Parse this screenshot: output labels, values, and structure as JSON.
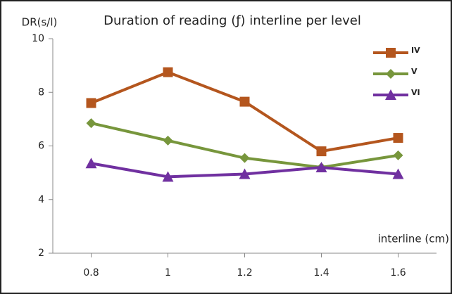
{
  "chart_data": {
    "type": "line",
    "title": "Duration of reading (ƒ) interline per level",
    "y_label": "DR(s/l)",
    "x_label": "interline (cm)",
    "x": [
      0.8,
      1,
      1.2,
      1.4,
      1.6
    ],
    "xlim": [
      0.7,
      1.7
    ],
    "xticks": [
      0.8,
      1,
      1.2,
      1.4,
      1.6
    ],
    "ylim": [
      2,
      10
    ],
    "yticks": [
      2,
      4,
      6,
      8,
      10
    ],
    "legend": "top-right",
    "series": [
      {
        "name": "IV",
        "color": "#b4561e",
        "marker": "square",
        "values": [
          7.6,
          8.75,
          7.65,
          5.8,
          6.3
        ]
      },
      {
        "name": "V",
        "color": "#77963c",
        "marker": "diamond",
        "values": [
          6.85,
          6.2,
          5.55,
          5.2,
          5.65
        ]
      },
      {
        "name": "VI",
        "color": "#7030a0",
        "marker": "triangle",
        "values": [
          5.35,
          4.85,
          4.95,
          5.2,
          4.95
        ]
      }
    ]
  }
}
